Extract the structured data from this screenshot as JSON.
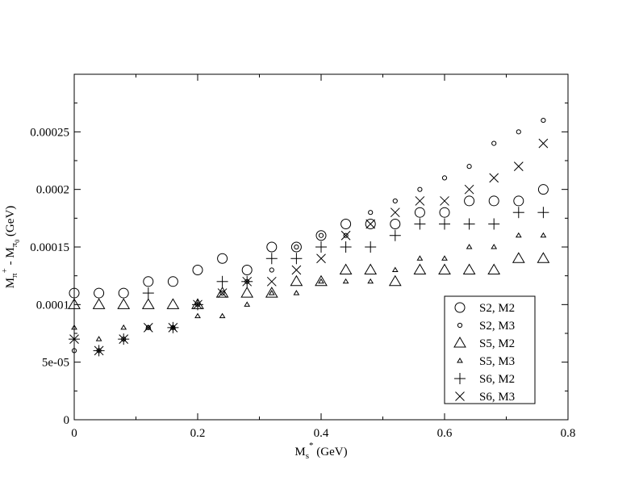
{
  "chart_data": {
    "type": "scatter",
    "xlabel": {
      "main": "M",
      "sub": "s",
      "sup": "*",
      "unit": " (GeV)"
    },
    "ylabel": {
      "main1": "M",
      "sub1": "π",
      "sup1": "+",
      "mid": " - M",
      "sub2": "π",
      "subsub2": "0",
      "unit": " (GeV)"
    },
    "xlim": [
      0,
      0.8
    ],
    "ylim": [
      0,
      0.0003
    ],
    "xticks": [
      "0",
      "0.2",
      "0.4",
      "0.6",
      "0.8"
    ],
    "yticks": [
      "0",
      "5e-05",
      "0.0001",
      "0.00015",
      "0.0002",
      "0.00025"
    ],
    "grid": false,
    "legend_position": "bottom-right",
    "x": [
      0,
      0.04,
      0.08,
      0.12,
      0.16,
      0.2,
      0.24,
      0.28,
      0.32,
      0.36,
      0.4,
      0.44,
      0.48,
      0.52,
      0.56,
      0.6,
      0.64,
      0.68,
      0.72,
      0.76
    ],
    "series": [
      {
        "name": "S2, M2",
        "marker": "circle-large",
        "values": [
          0.00011,
          0.00011,
          0.00011,
          0.00012,
          0.00012,
          0.00013,
          0.00014,
          0.00013,
          0.00015,
          0.00015,
          0.00016,
          0.00017,
          0.00017,
          0.00017,
          0.00018,
          0.00018,
          0.00019,
          0.00019,
          0.00019,
          0.0002
        ]
      },
      {
        "name": "S2, M3",
        "marker": "circle-small",
        "values": [
          6e-05,
          6e-05,
          7e-05,
          8e-05,
          8e-05,
          0.0001,
          0.00011,
          0.00012,
          0.00013,
          0.00015,
          0.00016,
          0.00016,
          0.00018,
          0.00019,
          0.0002,
          0.00021,
          0.00022,
          0.00024,
          0.00025,
          0.00026
        ]
      },
      {
        "name": "S5, M2",
        "marker": "triangle-large",
        "values": [
          0.0001,
          0.0001,
          0.0001,
          0.0001,
          0.0001,
          0.0001,
          0.00011,
          0.00011,
          0.00011,
          0.00012,
          0.00012,
          0.00013,
          0.00013,
          0.00012,
          0.00013,
          0.00013,
          0.00013,
          0.00013,
          0.00014,
          0.00014
        ]
      },
      {
        "name": "S5, M3",
        "marker": "triangle-small",
        "values": [
          8e-05,
          7e-05,
          8e-05,
          8e-05,
          8e-05,
          9e-05,
          9e-05,
          0.0001,
          0.00011,
          0.00011,
          0.00012,
          0.00012,
          0.00012,
          0.00013,
          0.00014,
          0.00014,
          0.00015,
          0.00015,
          0.00016,
          0.00016
        ]
      },
      {
        "name": "S6, M2",
        "marker": "plus",
        "values": [
          7e-05,
          6e-05,
          7e-05,
          0.00011,
          8e-05,
          0.0001,
          0.00012,
          0.00012,
          0.00014,
          0.00014,
          0.00015,
          0.00015,
          0.00015,
          0.00016,
          0.00017,
          0.00017,
          0.00017,
          0.00017,
          0.00018,
          0.00018
        ]
      },
      {
        "name": "S6, M3",
        "marker": "x",
        "values": [
          7e-05,
          6e-05,
          7e-05,
          8e-05,
          8e-05,
          0.0001,
          0.00011,
          0.00012,
          0.00012,
          0.00013,
          0.00014,
          0.00016,
          0.00017,
          0.00018,
          0.00019,
          0.00019,
          0.0002,
          0.00021,
          0.00022,
          0.00024
        ]
      }
    ]
  }
}
